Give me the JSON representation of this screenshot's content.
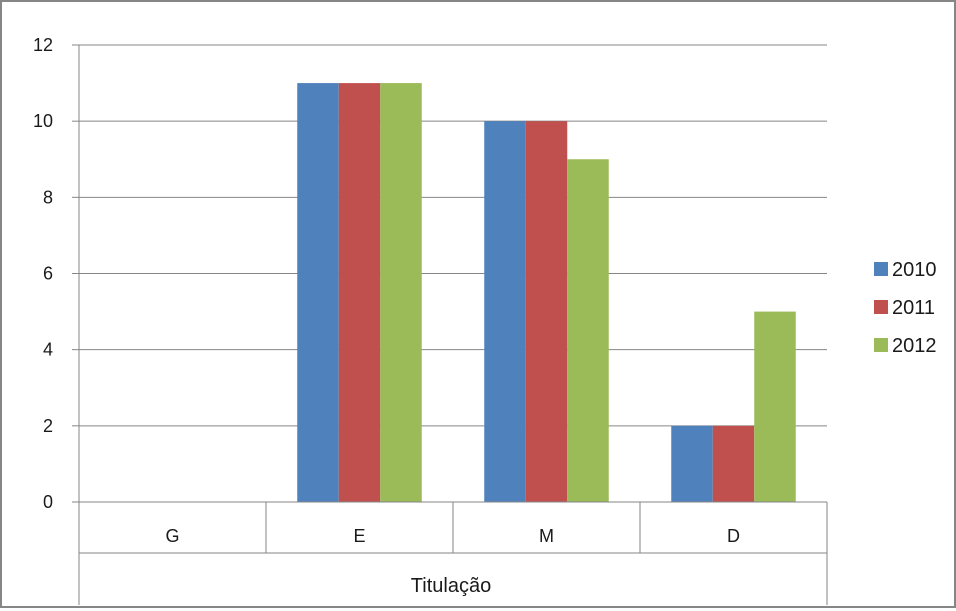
{
  "chart_data": {
    "type": "bar",
    "title": "",
    "xlabel": "Titulação",
    "ylabel": "",
    "ylim": [
      0,
      12
    ],
    "yticks": [
      0,
      2,
      4,
      6,
      8,
      10,
      12
    ],
    "grid": true,
    "legend_position": "right",
    "categories": [
      "G",
      "E",
      "M",
      "D"
    ],
    "series": [
      {
        "name": "2010",
        "color": "#4F81BD",
        "values": [
          0,
          11,
          10,
          2
        ]
      },
      {
        "name": "2011",
        "color": "#C0504D",
        "values": [
          0,
          11,
          10,
          2
        ]
      },
      {
        "name": "2012",
        "color": "#9BBB59",
        "values": [
          0,
          11,
          9,
          5
        ]
      }
    ]
  }
}
